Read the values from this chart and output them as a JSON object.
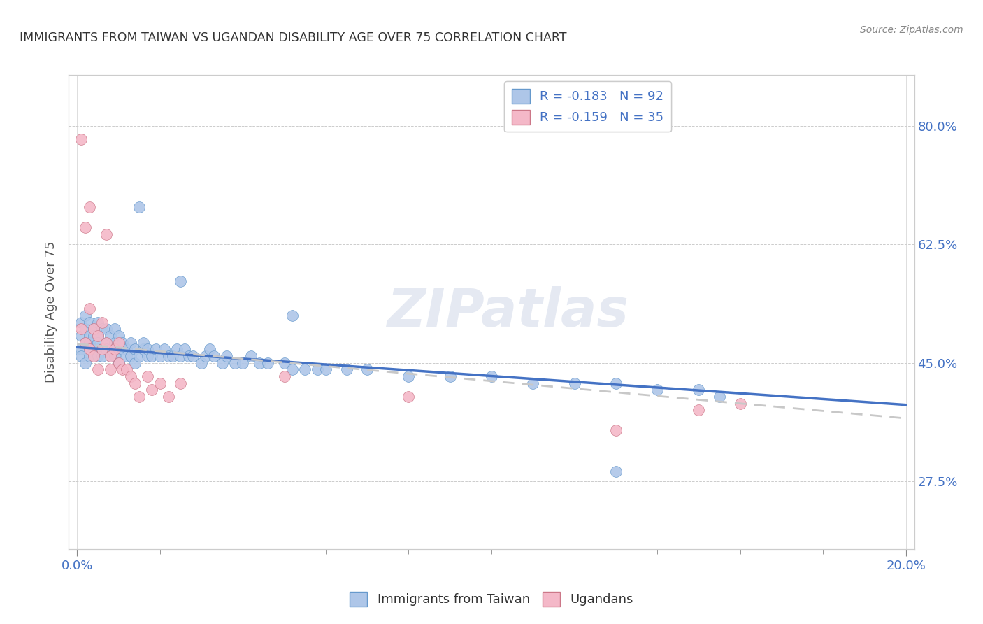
{
  "title": "IMMIGRANTS FROM TAIWAN VS UGANDAN DISABILITY AGE OVER 75 CORRELATION CHART",
  "source": "Source: ZipAtlas.com",
  "ylabel": "Disability Age Over 75",
  "legend_r1": "R = -0.183   N = 92",
  "legend_r2": "R = -0.159   N = 35",
  "color_taiwan": "#aec6e8",
  "color_taiwan_edge": "#6699cc",
  "color_ugandan": "#f4b8c8",
  "color_ugandan_edge": "#cc7788",
  "color_taiwan_line": "#4472c4",
  "color_ugandan_line": "#c8c8c8",
  "color_axis": "#4472c4",
  "right_ytick_vals": [
    0.275,
    0.45,
    0.625,
    0.8
  ],
  "right_ytick_labels": [
    "27.5%",
    "45.0%",
    "62.5%",
    "80.0%"
  ],
  "xlim": [
    -0.002,
    0.202
  ],
  "ylim": [
    0.175,
    0.875
  ],
  "taiwan_line_x": [
    0.0,
    0.2
  ],
  "taiwan_line_y": [
    0.473,
    0.388
  ],
  "ugandan_line_x": [
    0.0,
    0.2
  ],
  "ugandan_line_y": [
    0.478,
    0.368
  ],
  "taiwan_x": [
    0.001,
    0.001,
    0.001,
    0.001,
    0.002,
    0.002,
    0.002,
    0.002,
    0.003,
    0.003,
    0.003,
    0.003,
    0.003,
    0.004,
    0.004,
    0.004,
    0.004,
    0.005,
    0.005,
    0.005,
    0.005,
    0.005,
    0.006,
    0.006,
    0.006,
    0.007,
    0.007,
    0.007,
    0.008,
    0.008,
    0.008,
    0.009,
    0.009,
    0.009,
    0.01,
    0.01,
    0.01,
    0.011,
    0.011,
    0.012,
    0.012,
    0.013,
    0.013,
    0.014,
    0.014,
    0.015,
    0.016,
    0.016,
    0.017,
    0.017,
    0.018,
    0.019,
    0.02,
    0.021,
    0.022,
    0.023,
    0.024,
    0.025,
    0.026,
    0.027,
    0.028,
    0.03,
    0.031,
    0.032,
    0.033,
    0.035,
    0.036,
    0.038,
    0.04,
    0.042,
    0.044,
    0.046,
    0.05,
    0.052,
    0.055,
    0.058,
    0.06,
    0.065,
    0.07,
    0.08,
    0.09,
    0.1,
    0.11,
    0.12,
    0.13,
    0.14,
    0.15,
    0.155,
    0.015,
    0.025,
    0.052,
    0.13
  ],
  "taiwan_y": [
    0.47,
    0.49,
    0.51,
    0.46,
    0.48,
    0.5,
    0.45,
    0.52,
    0.47,
    0.49,
    0.51,
    0.46,
    0.48,
    0.47,
    0.5,
    0.46,
    0.49,
    0.47,
    0.49,
    0.51,
    0.46,
    0.48,
    0.47,
    0.5,
    0.46,
    0.48,
    0.47,
    0.5,
    0.46,
    0.49,
    0.47,
    0.48,
    0.46,
    0.5,
    0.47,
    0.49,
    0.45,
    0.47,
    0.48,
    0.47,
    0.46,
    0.48,
    0.46,
    0.47,
    0.45,
    0.46,
    0.47,
    0.48,
    0.46,
    0.47,
    0.46,
    0.47,
    0.46,
    0.47,
    0.46,
    0.46,
    0.47,
    0.46,
    0.47,
    0.46,
    0.46,
    0.45,
    0.46,
    0.47,
    0.46,
    0.45,
    0.46,
    0.45,
    0.45,
    0.46,
    0.45,
    0.45,
    0.45,
    0.44,
    0.44,
    0.44,
    0.44,
    0.44,
    0.44,
    0.43,
    0.43,
    0.43,
    0.42,
    0.42,
    0.42,
    0.41,
    0.41,
    0.4,
    0.68,
    0.57,
    0.52,
    0.29
  ],
  "ugandan_x": [
    0.001,
    0.001,
    0.002,
    0.002,
    0.003,
    0.003,
    0.003,
    0.004,
    0.004,
    0.005,
    0.005,
    0.006,
    0.006,
    0.007,
    0.007,
    0.008,
    0.008,
    0.009,
    0.01,
    0.01,
    0.011,
    0.012,
    0.013,
    0.014,
    0.015,
    0.017,
    0.018,
    0.02,
    0.022,
    0.025,
    0.05,
    0.08,
    0.13,
    0.15,
    0.16
  ],
  "ugandan_y": [
    0.78,
    0.5,
    0.65,
    0.48,
    0.53,
    0.47,
    0.68,
    0.5,
    0.46,
    0.49,
    0.44,
    0.51,
    0.47,
    0.48,
    0.64,
    0.46,
    0.44,
    0.47,
    0.48,
    0.45,
    0.44,
    0.44,
    0.43,
    0.42,
    0.4,
    0.43,
    0.41,
    0.42,
    0.4,
    0.42,
    0.43,
    0.4,
    0.35,
    0.38,
    0.39
  ]
}
